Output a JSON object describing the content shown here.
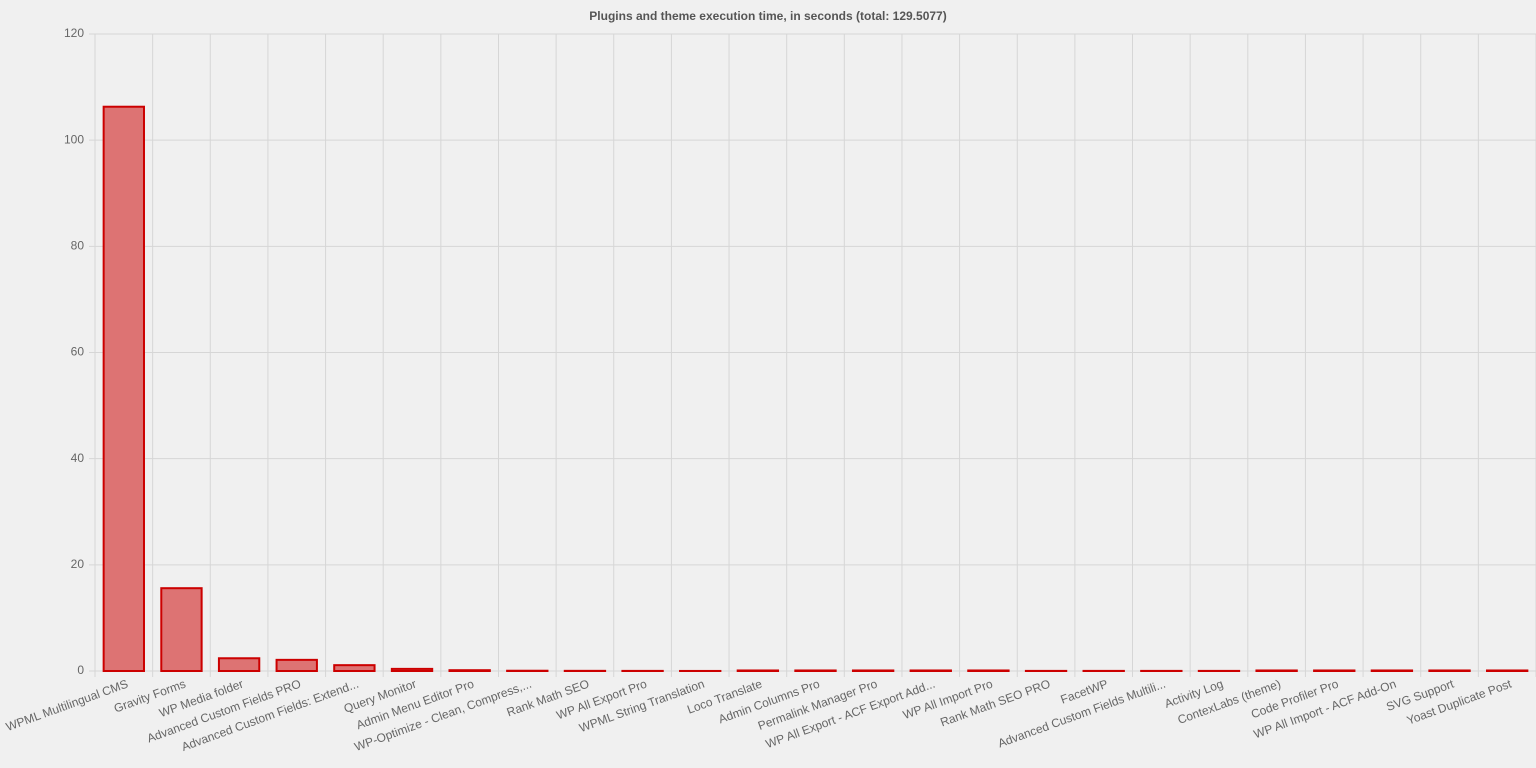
{
  "chart_data": {
    "type": "bar",
    "title": "Plugins and theme execution time, in seconds (total: 129.5077)",
    "categories": [
      "WPML Multilingual CMS",
      "Gravity Forms",
      "WP Media folder",
      "Advanced Custom Fields PRO",
      "Advanced Custom Fields: Extend...",
      "Query Monitor",
      "Admin Menu Editor Pro",
      "WP-Optimize - Clean, Compress,...",
      "Rank Math SEO",
      "WP All Export Pro",
      "WPML String Translation",
      "Loco Translate",
      "Admin Columns Pro",
      "Permalink Manager Pro",
      "WP All Export - ACF Export Add...",
      "WP All Import Pro",
      "Rank Math SEO PRO",
      "FacetWP",
      "Advanced Custom Fields Multili...",
      "Activity Log",
      "ContexLabs (theme)",
      "Code Profiler Pro",
      "WP All Import - ACF Add-On",
      "SVG Support",
      "Yoast Duplicate Post"
    ],
    "values": [
      106.3,
      15.6,
      2.4,
      2.1,
      1.1,
      0.4,
      0.15,
      0.05,
      0.03,
      0.02,
      0.01,
      0.1,
      0.1,
      0.1,
      0.1,
      0.1,
      0.02,
      0.02,
      0.02,
      0.02,
      0.1,
      0.1,
      0.1,
      0.1,
      0.1
    ],
    "color": "#dd7373",
    "border_color": "#cc0000",
    "ylim": [
      0,
      120
    ],
    "yticks": [
      0,
      20,
      40,
      60,
      80,
      100,
      120
    ],
    "grid": true
  }
}
